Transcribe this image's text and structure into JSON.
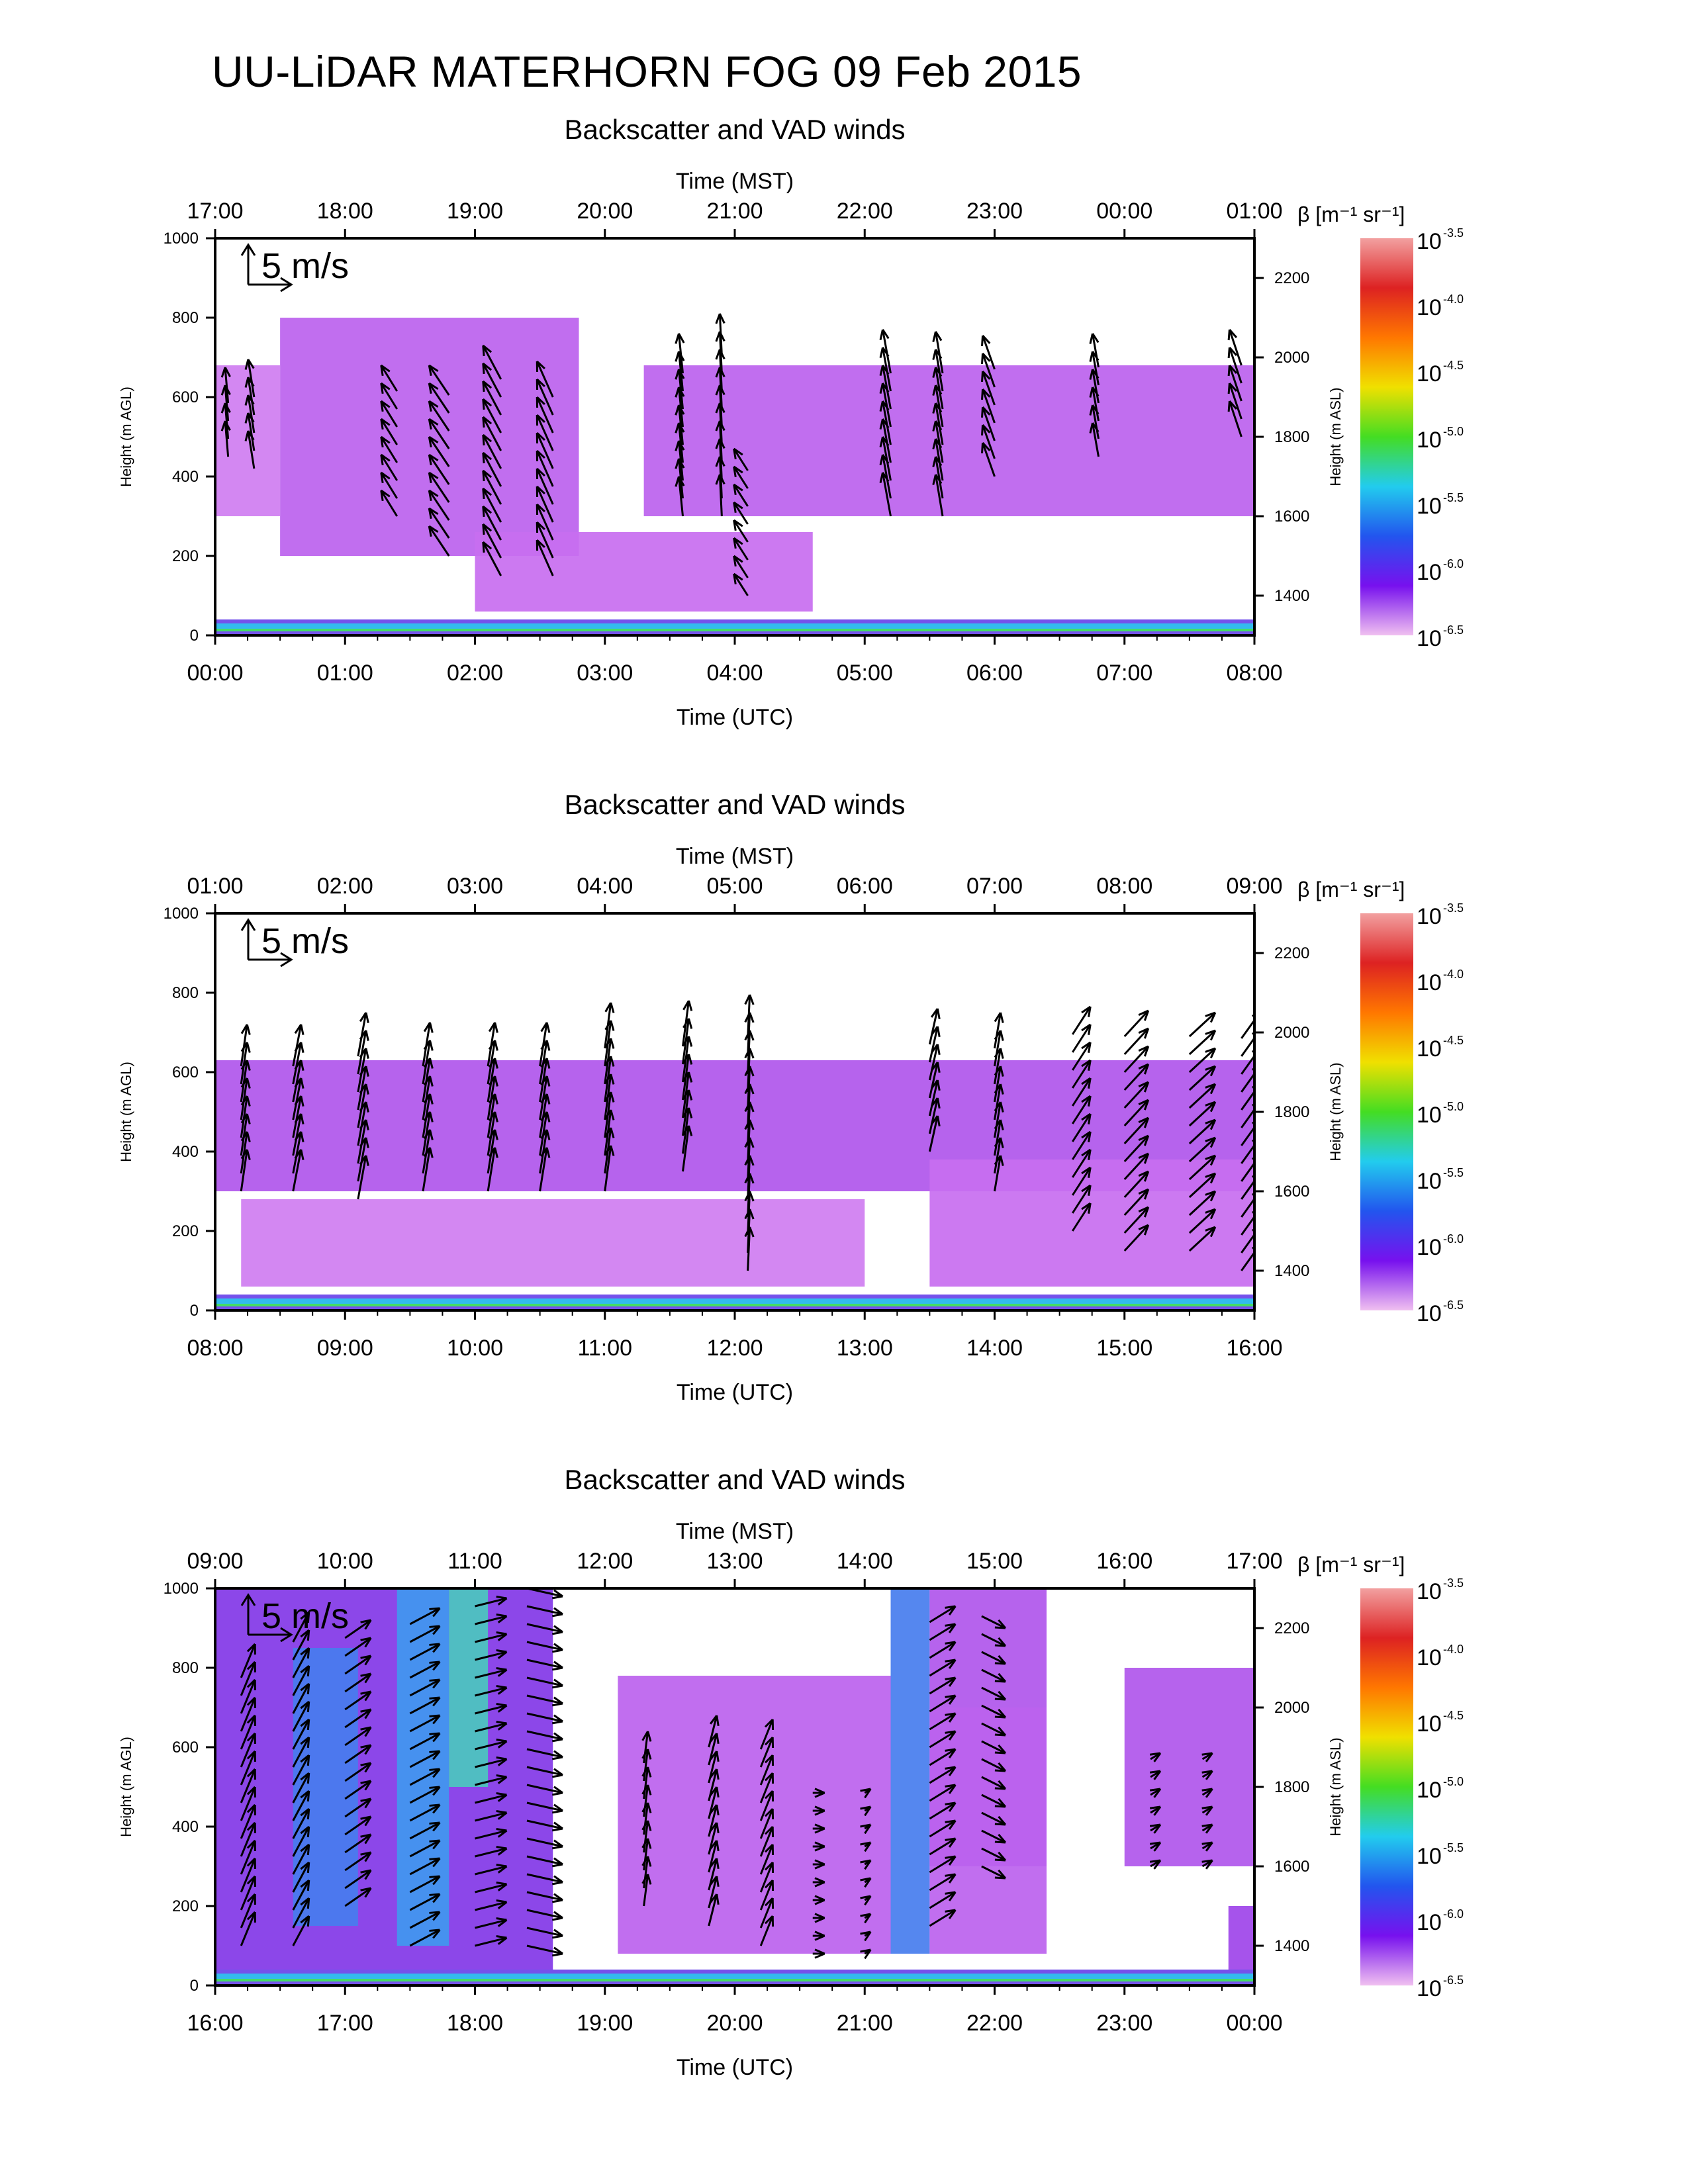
{
  "title": "UU-LiDAR MATERHORN FOG  09 Feb 2015",
  "chart_data": [
    {
      "type": "heatmap",
      "title": "Backscatter and VAD winds",
      "xlabel_top": "Time (MST)",
      "xlabel_bottom": "Time (UTC)",
      "ylabel_left": "Height (m AGL)",
      "ylabel_right": "Height (m ASL)",
      "xticks_top": [
        "17:00",
        "18:00",
        "19:00",
        "20:00",
        "21:00",
        "22:00",
        "23:00",
        "00:00",
        "01:00"
      ],
      "xticks_bottom": [
        "00:00",
        "01:00",
        "02:00",
        "03:00",
        "04:00",
        "05:00",
        "06:00",
        "07:00",
        "08:00"
      ],
      "yticks_left": [
        "0",
        "200",
        "400",
        "600",
        "800",
        "1000"
      ],
      "yticks_right": [
        "1400",
        "1600",
        "1800",
        "2000",
        "2200"
      ],
      "ylim_agl": [
        0,
        1000
      ],
      "ylim_asl": [
        1300,
        2300
      ],
      "wind_scale_label": "5 m/s",
      "backscatter_regions": [
        {
          "t0": 0.0,
          "t1": 0.5,
          "h0": 300,
          "h1": 680,
          "level": 0.15
        },
        {
          "t0": 0.5,
          "t1": 2.8,
          "h0": 200,
          "h1": 800,
          "level": 0.2
        },
        {
          "t0": 3.3,
          "t1": 8.0,
          "h0": 300,
          "h1": 680,
          "level": 0.2
        },
        {
          "t0": 2.0,
          "t1": 4.6,
          "h0": 60,
          "h1": 260,
          "level": 0.18
        },
        {
          "t0": 0.0,
          "t1": 8.0,
          "h0": 0,
          "h1": 40,
          "level": 0.35
        }
      ],
      "wind_profiles": [
        {
          "t": 0.1,
          "h0": 450,
          "h1": 620,
          "u": -0.3,
          "v": 3.6
        },
        {
          "t": 0.3,
          "h0": 420,
          "h1": 600,
          "u": -0.6,
          "v": 3.8
        },
        {
          "t": 1.4,
          "h0": 300,
          "h1": 620,
          "u": -1.6,
          "v": 2.6
        },
        {
          "t": 1.8,
          "h0": 200,
          "h1": 640,
          "u": -2.0,
          "v": 3.0
        },
        {
          "t": 2.2,
          "h0": 150,
          "h1": 650,
          "u": -1.8,
          "v": 3.4
        },
        {
          "t": 2.6,
          "h0": 150,
          "h1": 640,
          "u": -1.6,
          "v": 3.6
        },
        {
          "t": 3.6,
          "h0": 300,
          "h1": 700,
          "u": -0.4,
          "v": 4.0
        },
        {
          "t": 3.9,
          "h0": 300,
          "h1": 720,
          "u": -0.2,
          "v": 4.2
        },
        {
          "t": 4.1,
          "h0": 100,
          "h1": 420,
          "u": -1.4,
          "v": 2.2
        },
        {
          "t": 5.2,
          "h0": 300,
          "h1": 700,
          "u": -0.8,
          "v": 4.4
        },
        {
          "t": 5.6,
          "h0": 300,
          "h1": 680,
          "u": -0.7,
          "v": 4.2
        },
        {
          "t": 6.0,
          "h0": 400,
          "h1": 680,
          "u": -1.2,
          "v": 3.4
        },
        {
          "t": 6.8,
          "h0": 450,
          "h1": 680,
          "u": -0.6,
          "v": 3.4
        },
        {
          "t": 7.9,
          "h0": 500,
          "h1": 700,
          "u": -1.2,
          "v": 3.6
        }
      ]
    },
    {
      "type": "heatmap",
      "title": "Backscatter and VAD winds",
      "xlabel_top": "Time (MST)",
      "xlabel_bottom": "Time (UTC)",
      "ylabel_left": "Height (m AGL)",
      "ylabel_right": "Height (m ASL)",
      "xticks_top": [
        "01:00",
        "02:00",
        "03:00",
        "04:00",
        "05:00",
        "06:00",
        "07:00",
        "08:00",
        "09:00"
      ],
      "xticks_bottom": [
        "08:00",
        "09:00",
        "10:00",
        "11:00",
        "12:00",
        "13:00",
        "14:00",
        "15:00",
        "16:00"
      ],
      "yticks_left": [
        "0",
        "200",
        "400",
        "600",
        "800",
        "1000"
      ],
      "yticks_right": [
        "1400",
        "1600",
        "1800",
        "2000",
        "2200"
      ],
      "ylim_agl": [
        0,
        1000
      ],
      "ylim_asl": [
        1300,
        2300
      ],
      "wind_scale_label": "5 m/s",
      "backscatter_regions": [
        {
          "t0": 8.0,
          "t1": 16.0,
          "h0": 300,
          "h1": 630,
          "level": 0.22
        },
        {
          "t0": 8.2,
          "t1": 13.0,
          "h0": 60,
          "h1": 280,
          "level": 0.15
        },
        {
          "t0": 13.5,
          "t1": 16.0,
          "h0": 60,
          "h1": 380,
          "level": 0.18
        },
        {
          "t0": 8.0,
          "t1": 16.0,
          "h0": 0,
          "h1": 40,
          "level": 0.35
        }
      ],
      "wind_profiles": [
        {
          "t": 8.2,
          "h0": 300,
          "h1": 650,
          "u": 0.6,
          "v": 4.2
        },
        {
          "t": 8.6,
          "h0": 300,
          "h1": 650,
          "u": 0.8,
          "v": 4.2
        },
        {
          "t": 9.1,
          "h0": 280,
          "h1": 650,
          "u": 0.8,
          "v": 4.4
        },
        {
          "t": 9.6,
          "h0": 300,
          "h1": 650,
          "u": 0.7,
          "v": 4.4
        },
        {
          "t": 10.1,
          "h0": 300,
          "h1": 650,
          "u": 0.7,
          "v": 4.4
        },
        {
          "t": 10.5,
          "h0": 300,
          "h1": 650,
          "u": 0.7,
          "v": 4.4
        },
        {
          "t": 11.0,
          "h0": 300,
          "h1": 700,
          "u": 0.6,
          "v": 4.6
        },
        {
          "t": 11.6,
          "h0": 350,
          "h1": 700,
          "u": 0.6,
          "v": 4.6
        },
        {
          "t": 12.1,
          "h0": 100,
          "h1": 700,
          "u": 0.2,
          "v": 4.4
        },
        {
          "t": 13.5,
          "h0": 400,
          "h1": 700,
          "u": 0.8,
          "v": 3.6
        },
        {
          "t": 14.0,
          "h0": 300,
          "h1": 700,
          "u": 0.6,
          "v": 3.6
        },
        {
          "t": 14.6,
          "h0": 200,
          "h1": 700,
          "u": 1.8,
          "v": 2.8
        },
        {
          "t": 15.0,
          "h0": 150,
          "h1": 700,
          "u": 2.4,
          "v": 2.6
        },
        {
          "t": 15.5,
          "h0": 150,
          "h1": 700,
          "u": 2.6,
          "v": 2.4
        },
        {
          "t": 15.9,
          "h0": 100,
          "h1": 700,
          "u": 2.0,
          "v": 2.8
        }
      ]
    },
    {
      "type": "heatmap",
      "title": "Backscatter and VAD winds",
      "xlabel_top": "Time (MST)",
      "xlabel_bottom": "Time (UTC)",
      "ylabel_left": "Height (m AGL)",
      "ylabel_right": "Height (m ASL)",
      "xticks_top": [
        "09:00",
        "10:00",
        "11:00",
        "12:00",
        "13:00",
        "14:00",
        "15:00",
        "16:00",
        "17:00"
      ],
      "xticks_bottom": [
        "16:00",
        "17:00",
        "18:00",
        "19:00",
        "20:00",
        "21:00",
        "22:00",
        "23:00",
        "00:00"
      ],
      "yticks_left": [
        "0",
        "200",
        "400",
        "600",
        "800",
        "1000"
      ],
      "yticks_right": [
        "1400",
        "1600",
        "1800",
        "2000",
        "2200"
      ],
      "ylim_agl": [
        0,
        1000
      ],
      "ylim_asl": [
        1300,
        2300
      ],
      "wind_scale_label": "5 m/s",
      "backscatter_regions": [
        {
          "t0": 16.0,
          "t1": 18.6,
          "h0": 40,
          "h1": 1000,
          "level": 0.3
        },
        {
          "t0": 16.6,
          "t1": 17.1,
          "h0": 150,
          "h1": 850,
          "level": 0.45
        },
        {
          "t0": 17.4,
          "t1": 17.8,
          "h0": 100,
          "h1": 1000,
          "level": 0.48
        },
        {
          "t0": 17.8,
          "t1": 18.1,
          "h0": 500,
          "h1": 1000,
          "level": 0.55
        },
        {
          "t0": 19.1,
          "t1": 21.2,
          "h0": 80,
          "h1": 780,
          "level": 0.2
        },
        {
          "t0": 21.2,
          "t1": 21.5,
          "h0": 80,
          "h1": 1000,
          "level": 0.45
        },
        {
          "t0": 21.5,
          "t1": 22.4,
          "h0": 300,
          "h1": 1000,
          "level": 0.22
        },
        {
          "t0": 21.5,
          "t1": 22.4,
          "h0": 80,
          "h1": 700,
          "level": 0.2
        },
        {
          "t0": 23.0,
          "t1": 24.0,
          "h0": 300,
          "h1": 800,
          "level": 0.22
        },
        {
          "t0": 23.8,
          "t1": 24.0,
          "h0": 40,
          "h1": 200,
          "level": 0.25
        },
        {
          "t0": 16.0,
          "t1": 24.0,
          "h0": 0,
          "h1": 40,
          "level": 0.35
        }
      ],
      "wind_profiles": [
        {
          "t": 16.2,
          "h0": 100,
          "h1": 800,
          "u": 1.4,
          "v": 3.4
        },
        {
          "t": 16.6,
          "h0": 100,
          "h1": 900,
          "u": 1.6,
          "v": 3.0
        },
        {
          "t": 17.0,
          "h0": 200,
          "h1": 900,
          "u": 2.6,
          "v": 1.8
        },
        {
          "t": 17.5,
          "h0": 100,
          "h1": 950,
          "u": 3.0,
          "v": 1.6
        },
        {
          "t": 18.0,
          "h0": 100,
          "h1": 1000,
          "u": 3.2,
          "v": 0.8
        },
        {
          "t": 18.4,
          "h0": 100,
          "h1": 1000,
          "u": 3.6,
          "v": -0.8
        },
        {
          "t": 19.3,
          "h0": 200,
          "h1": 600,
          "u": 0.4,
          "v": 3.2
        },
        {
          "t": 19.8,
          "h0": 150,
          "h1": 620,
          "u": 0.8,
          "v": 3.2
        },
        {
          "t": 20.2,
          "h0": 100,
          "h1": 600,
          "u": 1.2,
          "v": 3.0
        },
        {
          "t": 20.6,
          "h0": 80,
          "h1": 500,
          "u": 1.2,
          "v": 0.0
        },
        {
          "t": 21.0,
          "h0": 80,
          "h1": 500,
          "u": 0.6,
          "v": 0.4
        },
        {
          "t": 21.5,
          "h0": 150,
          "h1": 950,
          "u": 2.6,
          "v": 1.6
        },
        {
          "t": 21.9,
          "h0": 300,
          "h1": 950,
          "u": 2.4,
          "v": -1.2
        },
        {
          "t": 23.2,
          "h0": 300,
          "h1": 600,
          "u": 1.0,
          "v": 0.6
        },
        {
          "t": 23.6,
          "h0": 300,
          "h1": 600,
          "u": 1.0,
          "v": 0.6
        }
      ]
    }
  ],
  "colorbar": {
    "label": "β [m⁻¹ sr⁻¹]",
    "base": "10",
    "exponents": [
      "-3.5",
      "-4.0",
      "-4.5",
      "-5.0",
      "-5.5",
      "-6.0",
      "-6.5"
    ],
    "colors": [
      "#f2a0a0",
      "#dd2222",
      "#ff7700",
      "#f0e000",
      "#44dd22",
      "#22ccee",
      "#2255ee",
      "#7711ee",
      "#f0c0f0"
    ]
  },
  "colors": {
    "arrow": "#000000",
    "low_backscatter": "#cc66f0",
    "mid_backscatter": "#8a2be2",
    "aerosol_high": "#3aa8f0"
  }
}
